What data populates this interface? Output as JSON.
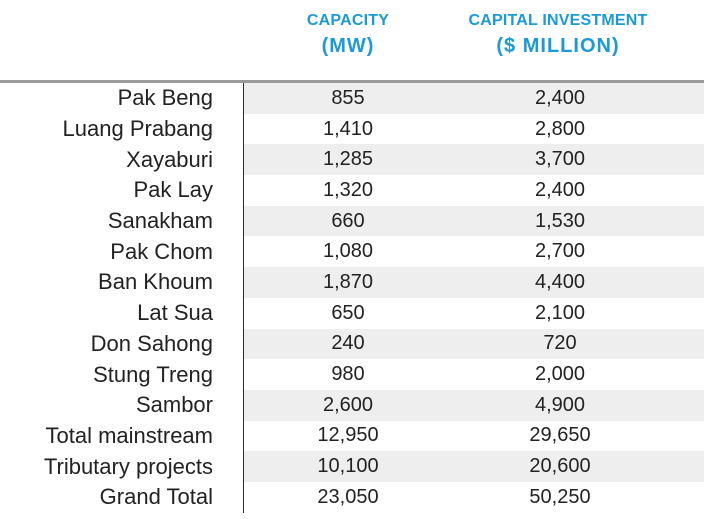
{
  "header": {
    "capacity_line1": "CAPACITY",
    "capacity_line2": "(MW)",
    "investment_line1": "CAPITAL INVESTMENT",
    "investment_line2": "($ MILLION)"
  },
  "colors": {
    "header_accent": "#1c9ad6",
    "row_shading": "#eeeeee",
    "top_rule": "#9a9a9a"
  },
  "rows": [
    {
      "name": "Pak Beng",
      "capacity": "855",
      "investment": "2,400"
    },
    {
      "name": "Luang Prabang",
      "capacity": "1,410",
      "investment": "2,800"
    },
    {
      "name": "Xayaburi",
      "capacity": "1,285",
      "investment": "3,700"
    },
    {
      "name": "Pak Lay",
      "capacity": "1,320",
      "investment": "2,400"
    },
    {
      "name": "Sanakham",
      "capacity": "660",
      "investment": "1,530"
    },
    {
      "name": "Pak Chom",
      "capacity": "1,080",
      "investment": "2,700"
    },
    {
      "name": "Ban Khoum",
      "capacity": "1,870",
      "investment": "4,400"
    },
    {
      "name": "Lat Sua",
      "capacity": "650",
      "investment": "2,100"
    },
    {
      "name": "Don Sahong",
      "capacity": "240",
      "investment": "720"
    },
    {
      "name": "Stung Treng",
      "capacity": "980",
      "investment": "2,000"
    },
    {
      "name": "Sambor",
      "capacity": "2,600",
      "investment": "4,900"
    },
    {
      "name": "Total mainstream",
      "capacity": "12,950",
      "investment": "29,650"
    },
    {
      "name": "Tributary projects",
      "capacity": "10,100",
      "investment": "20,600"
    },
    {
      "name": "Grand Total",
      "capacity": "23,050",
      "investment": "50,250"
    }
  ]
}
